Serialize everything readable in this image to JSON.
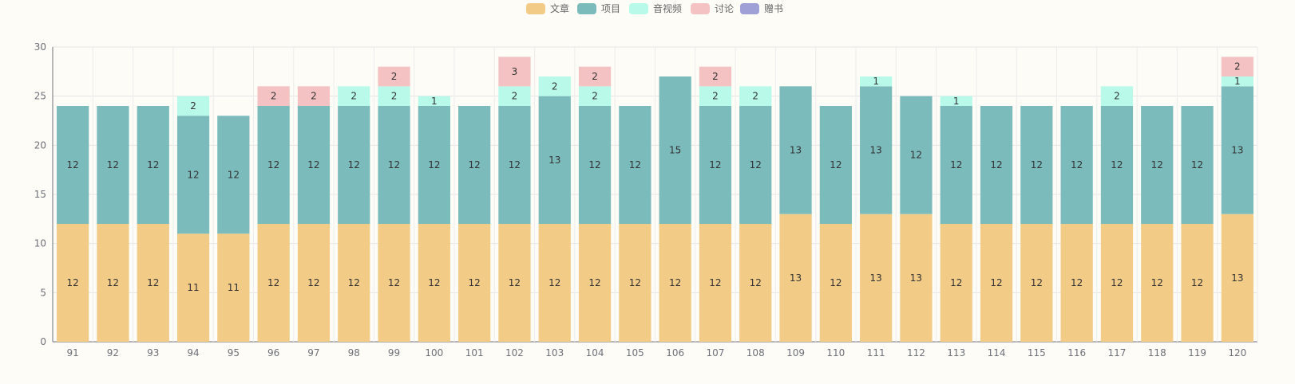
{
  "chart_data": {
    "type": "bar",
    "stacked": true,
    "title": "",
    "xlabel": "",
    "ylabel": "",
    "ylim": [
      0,
      30
    ],
    "yticks": [
      0,
      5,
      10,
      15,
      20,
      25,
      30
    ],
    "grid": true,
    "legend_position": "top-center",
    "categories": [
      "91",
      "92",
      "93",
      "94",
      "95",
      "96",
      "97",
      "98",
      "99",
      "100",
      "101",
      "102",
      "103",
      "104",
      "105",
      "106",
      "107",
      "108",
      "109",
      "110",
      "111",
      "112",
      "113",
      "114",
      "115",
      "116",
      "117",
      "118",
      "119",
      "120"
    ],
    "series": [
      {
        "name": "文章",
        "color": "#f2cb87",
        "values": [
          12,
          12,
          12,
          11,
          11,
          12,
          12,
          12,
          12,
          12,
          12,
          12,
          12,
          12,
          12,
          12,
          12,
          12,
          13,
          12,
          13,
          13,
          12,
          12,
          12,
          12,
          12,
          12,
          12,
          13
        ]
      },
      {
        "name": "项目",
        "color": "#7bbbbc",
        "values": [
          12,
          12,
          12,
          12,
          12,
          12,
          12,
          12,
          12,
          12,
          12,
          12,
          13,
          12,
          12,
          15,
          12,
          12,
          13,
          12,
          13,
          12,
          12,
          12,
          12,
          12,
          12,
          12,
          12,
          13
        ]
      },
      {
        "name": "音视频",
        "color": "#b9f9ea",
        "values": [
          0,
          0,
          0,
          2,
          0,
          0,
          0,
          2,
          2,
          1,
          0,
          2,
          2,
          2,
          0,
          0,
          2,
          2,
          0,
          0,
          1,
          0,
          1,
          0,
          0,
          0,
          2,
          0,
          0,
          1
        ]
      },
      {
        "name": "讨论",
        "color": "#f4c2c2",
        "values": [
          0,
          0,
          0,
          0,
          0,
          2,
          2,
          0,
          2,
          0,
          0,
          3,
          0,
          2,
          0,
          0,
          2,
          0,
          0,
          0,
          0,
          0,
          0,
          0,
          0,
          0,
          0,
          0,
          0,
          2
        ]
      },
      {
        "name": "赠书",
        "color": "#9fa0d6",
        "values": [
          0,
          0,
          0,
          0,
          0,
          0,
          0,
          0,
          0,
          0,
          0,
          0,
          0,
          0,
          0,
          0,
          0,
          0,
          0,
          0,
          0,
          0,
          0,
          0,
          0,
          0,
          0,
          0,
          0,
          0
        ]
      }
    ]
  }
}
